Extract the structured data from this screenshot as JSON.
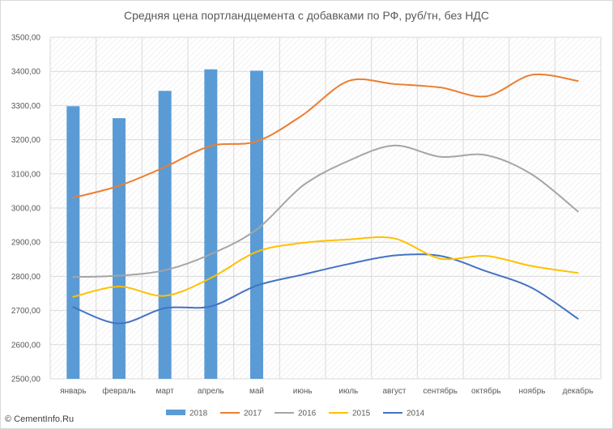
{
  "chart_data": {
    "type": "bar+line",
    "title": "Средняя цена портландцемента с добавками по РФ, руб/тн, без НДС",
    "categories": [
      "январь",
      "февраль",
      "март",
      "апрель",
      "май",
      "июнь",
      "июль",
      "август",
      "сентябрь",
      "октябрь",
      "ноябрь",
      "декабрь"
    ],
    "ylim": [
      2500,
      3500
    ],
    "yticks": [
      "2500,00",
      "2600,00",
      "2700,00",
      "2800,00",
      "2900,00",
      "3000,00",
      "3100,00",
      "3200,00",
      "3300,00",
      "3400,00",
      "3500,00"
    ],
    "ytick_values": [
      2500,
      2600,
      2700,
      2800,
      2900,
      3000,
      3100,
      3200,
      3300,
      3400,
      3500
    ],
    "grid": true,
    "legend_position": "bottom",
    "series": [
      {
        "name": "2018",
        "type": "bar",
        "color": "#5b9bd5",
        "values": [
          3298,
          3263,
          3343,
          3406,
          3402,
          null,
          null,
          null,
          null,
          null,
          null,
          null
        ]
      },
      {
        "name": "2017",
        "type": "line",
        "color": "#ed7d31",
        "values": [
          3030,
          3065,
          3120,
          3182,
          3195,
          3272,
          3372,
          3363,
          3353,
          3327,
          3390,
          3372
        ]
      },
      {
        "name": "2016",
        "type": "line",
        "color": "#a5a5a5",
        "values": [
          2798,
          2802,
          2818,
          2865,
          2937,
          3065,
          3138,
          3183,
          3150,
          3155,
          3098,
          2990
        ]
      },
      {
        "name": "2015",
        "type": "line",
        "color": "#ffc000",
        "values": [
          2740,
          2770,
          2743,
          2795,
          2872,
          2898,
          2908,
          2911,
          2852,
          2860,
          2830,
          2810
        ]
      },
      {
        "name": "2014",
        "type": "line",
        "color": "#4472c4",
        "values": [
          2710,
          2662,
          2707,
          2712,
          2773,
          2805,
          2836,
          2861,
          2860,
          2815,
          2766,
          2676
        ]
      }
    ]
  },
  "watermark": "© CementInfo.Ru"
}
